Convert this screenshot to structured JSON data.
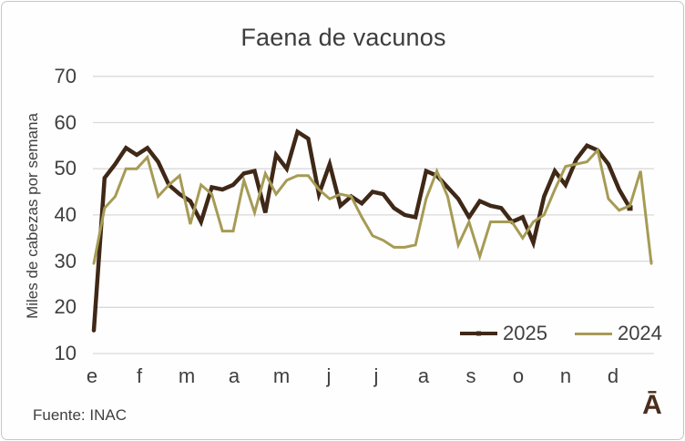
{
  "title": "Faena de vacunos",
  "y_axis": {
    "label": "Miles de cabezas por semana",
    "ticks": [
      70,
      60,
      50,
      40,
      30,
      20,
      10
    ]
  },
  "x_axis": {
    "labels": [
      "e",
      "f",
      "m",
      "a",
      "m",
      "j",
      "j",
      "a",
      "s",
      "o",
      "n",
      "d"
    ]
  },
  "legend": [
    {
      "label": "2025",
      "color": "#3f2817"
    },
    {
      "label": "2024",
      "color": "#a69b55"
    }
  ],
  "source": "Fuente: INAC",
  "watermark": "Ā",
  "colors": {
    "series_2025": "#3f2817",
    "series_2024": "#a69b55",
    "gridline": "#d9d9d9",
    "text": "#3f3f3f"
  },
  "chart_data": {
    "type": "line",
    "x_unit": "week",
    "title": "Faena de vacunos",
    "ylabel": "Miles de cabezas por semana",
    "xlabel_months": [
      "e",
      "f",
      "m",
      "a",
      "m",
      "j",
      "j",
      "a",
      "s",
      "o",
      "n",
      "d"
    ],
    "ylim": [
      10,
      70
    ],
    "grid": true,
    "legend_position": "inside-bottom-right",
    "series": [
      {
        "name": "2025",
        "color": "#3f2817",
        "stroke_width": 4.5,
        "end_marker": true,
        "values": [
          15,
          48,
          51,
          54.5,
          53,
          54.5,
          51.5,
          46.5,
          44.5,
          43,
          38.5,
          46,
          45.5,
          46.5,
          49,
          49.5,
          40.5,
          53,
          50,
          58,
          56.5,
          44.5,
          51,
          42,
          44,
          42.5,
          45,
          44.5,
          41.5,
          40,
          39.5,
          49.5,
          48.5,
          46,
          43.5,
          39.5,
          43,
          42,
          41.5,
          38.5,
          39.5,
          34,
          44,
          49.5,
          46.5,
          52,
          55,
          54,
          51,
          45.5,
          41.5
        ]
      },
      {
        "name": "2024",
        "color": "#a69b55",
        "stroke_width": 3,
        "end_marker": false,
        "values": [
          29.5,
          41.5,
          44,
          50,
          50,
          52.5,
          44,
          46.5,
          48.5,
          38,
          46.5,
          44.5,
          36.5,
          36.5,
          47.5,
          40.5,
          49,
          44.5,
          47.5,
          48.5,
          48.5,
          45.5,
          43.5,
          44.5,
          44,
          39.5,
          35.5,
          34.5,
          33,
          33,
          33.5,
          43.5,
          49.5,
          44,
          33.5,
          38.5,
          31,
          38.5,
          38.5,
          38.5,
          35,
          38.5,
          40,
          45.5,
          50.5,
          51,
          51.5,
          54,
          43.5,
          41,
          42,
          49.5,
          29.5
        ]
      }
    ]
  }
}
